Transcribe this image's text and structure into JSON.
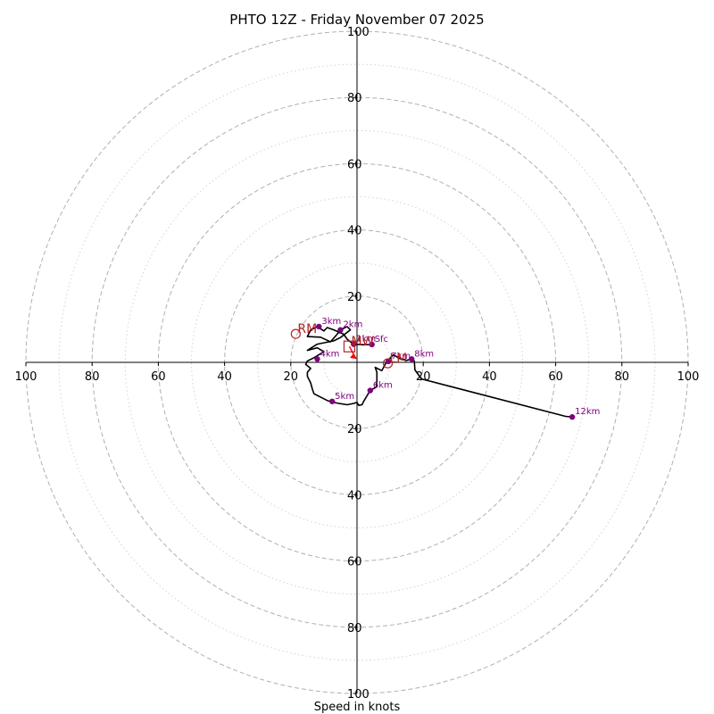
{
  "chart_data": {
    "type": "hodograph",
    "title": "PHTO 12Z - Friday November 07 2025",
    "xlabel": "Speed in knots",
    "range": [
      -100,
      100
    ],
    "major_rings": [
      20,
      40,
      60,
      80,
      100
    ],
    "minor_rings": [
      10,
      30,
      50,
      70,
      90
    ],
    "x_tick_labels": [
      {
        "value": -100,
        "label": "100"
      },
      {
        "value": -80,
        "label": "80"
      },
      {
        "value": -60,
        "label": "60"
      },
      {
        "value": -40,
        "label": "40"
      },
      {
        "value": -20,
        "label": "20"
      },
      {
        "value": 20,
        "label": "20"
      },
      {
        "value": 40,
        "label": "40"
      },
      {
        "value": 60,
        "label": "60"
      },
      {
        "value": 80,
        "label": "80"
      },
      {
        "value": 100,
        "label": "100"
      }
    ],
    "y_tick_labels": [
      {
        "value": 100,
        "label": "100"
      },
      {
        "value": 80,
        "label": "80"
      },
      {
        "value": 60,
        "label": "60"
      },
      {
        "value": 40,
        "label": "40"
      },
      {
        "value": 20,
        "label": "20"
      },
      {
        "value": -20,
        "label": "20"
      },
      {
        "value": -40,
        "label": "40"
      },
      {
        "value": -60,
        "label": "60"
      },
      {
        "value": -80,
        "label": "80"
      },
      {
        "value": -100,
        "label": "100"
      }
    ],
    "trace": [
      [
        4.5,
        5.4
      ],
      [
        2,
        5.3
      ],
      [
        -1,
        5.5
      ],
      [
        -2,
        6.2
      ],
      [
        -3,
        7
      ],
      [
        -4,
        8.5
      ],
      [
        -7,
        9.8
      ],
      [
        -9,
        10.5
      ],
      [
        -10,
        9.5
      ],
      [
        -12,
        10.8
      ],
      [
        -14,
        9.8
      ],
      [
        -15,
        7.8
      ],
      [
        -11,
        7.6
      ],
      [
        -8,
        6.2
      ],
      [
        -6,
        8.5
      ],
      [
        -5,
        9.8
      ],
      [
        -3,
        10.8
      ],
      [
        -2,
        9.8
      ],
      [
        -5,
        7.5
      ],
      [
        -7,
        6.5
      ],
      [
        -12,
        5.5
      ],
      [
        -15,
        3.6
      ],
      [
        -12,
        4.4
      ],
      [
        -10,
        3.2
      ],
      [
        -13,
        1.4
      ],
      [
        -15,
        0.4
      ],
      [
        -15.5,
        -0.6
      ],
      [
        -14,
        -1.8
      ],
      [
        -15,
        -3
      ],
      [
        -15,
        -4.2
      ],
      [
        -14,
        -6.2
      ],
      [
        -13.5,
        -8
      ],
      [
        -13,
        -9.5
      ],
      [
        -9,
        -11.5
      ],
      [
        -7.5,
        -12
      ],
      [
        -5.5,
        -12.4
      ],
      [
        -3,
        -12.8
      ],
      [
        -1,
        -12.4
      ],
      [
        0,
        -12.1
      ],
      [
        0.5,
        -13
      ],
      [
        1.5,
        -12.8
      ],
      [
        2,
        -11.8
      ],
      [
        4,
        -8.5
      ],
      [
        5.8,
        -7.5
      ],
      [
        6,
        -5.5
      ],
      [
        6,
        -3
      ],
      [
        5.5,
        -1.5
      ],
      [
        7.5,
        -2.5
      ],
      [
        9,
        0.3
      ],
      [
        11,
        2.3
      ],
      [
        13,
        1.1
      ],
      [
        15,
        0.6
      ],
      [
        16.5,
        1
      ],
      [
        17.3,
        0.4
      ],
      [
        17.5,
        -2.3
      ],
      [
        19.5,
        -5
      ],
      [
        63,
        -16.3
      ],
      [
        65,
        -16.5
      ]
    ],
    "height_points": [
      {
        "label": "Sfc",
        "u": 4.5,
        "v": 5.4
      },
      {
        "label": "1km",
        "u": -1,
        "v": 5.5
      },
      {
        "label": "2km",
        "u": -5,
        "v": 9.8
      },
      {
        "label": "3km",
        "u": -11.5,
        "v": 10.8
      },
      {
        "label": "4km",
        "u": -12,
        "v": 1.0
      },
      {
        "label": "5km",
        "u": -7.5,
        "v": -11.8
      },
      {
        "label": "6km",
        "u": 4,
        "v": -8.5
      },
      {
        "label": "7km",
        "u": 9.5,
        "v": 0.3
      },
      {
        "label": "8km",
        "u": 16.5,
        "v": 1.0
      },
      {
        "label": "12km",
        "u": 65,
        "v": -16.5
      }
    ],
    "storm_motion": [
      {
        "label": "RM",
        "u": -18.5,
        "v": 8.6
      },
      {
        "label": "LM",
        "u": 9.3,
        "v": -0.3
      },
      {
        "label": "MW",
        "u": -2.3,
        "v": 4.8
      }
    ],
    "colors": {
      "trace": "#000000",
      "height_marker": "#800080",
      "storm_motion": "#b22222",
      "arrow": "#ff0000",
      "grid": "#b0b0b0",
      "axis": "#000000"
    }
  }
}
